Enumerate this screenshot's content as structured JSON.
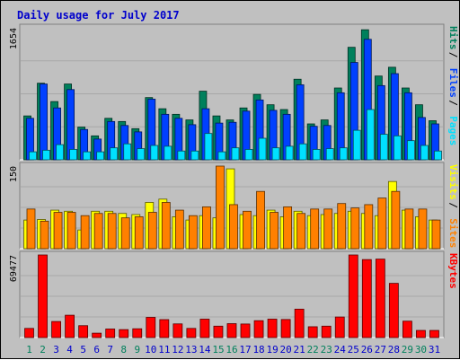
{
  "colors": {
    "background": "#c0c0c0",
    "panel_bg": "#c0c0c0",
    "grid": "#a8a8a8",
    "title": "#0000cc",
    "hits": "#00805c",
    "files": "#0040ff",
    "pages": "#00e0ff",
    "visits": "#ffff00",
    "sites": "#ff8000",
    "kbytes": "#ff0000",
    "weekend_label": "#00805c",
    "weekday_label": "#0000cc",
    "legend_slash": "#000000"
  },
  "chart_data": {
    "type": "bar",
    "title": "Daily usage for July 2017",
    "categories": [
      "1",
      "2",
      "3",
      "4",
      "5",
      "6",
      "7",
      "8",
      "9",
      "10",
      "11",
      "12",
      "13",
      "14",
      "15",
      "16",
      "17",
      "18",
      "19",
      "20",
      "21",
      "22",
      "23",
      "24",
      "25",
      "26",
      "27",
      "28",
      "29",
      "30",
      "31"
    ],
    "weekend_days": [
      "1",
      "2",
      "8",
      "9",
      "15",
      "16",
      "22",
      "23",
      "29",
      "30"
    ],
    "panels": [
      {
        "name": "hits-files-pages",
        "ymax_label": "1654",
        "ylim": [
          0,
          1654
        ],
        "legend": [
          "Pages",
          "Files",
          "Hits"
        ],
        "series": [
          {
            "name": "Hits",
            "color_key": "hits",
            "values": [
              550,
              960,
              730,
              950,
              410,
              300,
              520,
              480,
              390,
              780,
              640,
              570,
              500,
              860,
              550,
              500,
              650,
              820,
              690,
              630,
              1010,
              450,
              500,
              900,
              1410,
              1630,
              1050,
              1160,
              900,
              690,
              490
            ]
          },
          {
            "name": "Files",
            "color_key": "files",
            "values": [
              520,
              950,
              650,
              880,
              380,
              260,
              480,
              430,
              350,
              760,
              570,
              520,
              440,
              640,
              460,
              470,
              610,
              750,
              620,
              570,
              940,
              420,
              430,
              840,
              1220,
              1510,
              930,
              1080,
              840,
              530,
              450
            ]
          },
          {
            "name": "Pages",
            "color_key": "pages",
            "values": [
              100,
              120,
              190,
              130,
              100,
              100,
              150,
              200,
              140,
              180,
              170,
              110,
              110,
              330,
              100,
              150,
              130,
              270,
              150,
              170,
              200,
              130,
              140,
              150,
              370,
              630,
              320,
              300,
              240,
              180,
              110
            ]
          }
        ]
      },
      {
        "name": "visits-sites",
        "ymax_label": "150",
        "ylim": [
          0,
          150
        ],
        "legend": [
          "Sites",
          "Visits"
        ],
        "series": [
          {
            "name": "Visits",
            "color_key": "visits",
            "values": [
              52,
              53,
              70,
              68,
              34,
              68,
              68,
              64,
              62,
              84,
              90,
              58,
              52,
              60,
              56,
              145,
              62,
              60,
              70,
              58,
              68,
              60,
              62,
              64,
              68,
              64,
              60,
              122,
              70,
              58,
              52
            ]
          },
          {
            "name": "Sites",
            "color_key": "sites",
            "values": [
              72,
              50,
              66,
              66,
              60,
              64,
              64,
              56,
              58,
              66,
              84,
              70,
              60,
              76,
              150,
              80,
              68,
              104,
              66,
              76,
              64,
              72,
              72,
              82,
              74,
              80,
              92,
              104,
              72,
              72,
              52
            ]
          }
        ]
      },
      {
        "name": "kbytes",
        "ymax_label": "69477",
        "ylim": [
          0,
          69477
        ],
        "legend": [
          "KBytes"
        ],
        "series": [
          {
            "name": "KBytes",
            "color_key": "kbytes",
            "values": [
              7700,
              69477,
              13500,
              18800,
              10000,
              3700,
              7200,
              6700,
              7400,
              17000,
              15100,
              11500,
              7700,
              15500,
              9600,
              11700,
              11400,
              14200,
              15500,
              15200,
              23900,
              9100,
              9600,
              17300,
              69477,
              65600,
              66000,
              45600,
              13800,
              6000,
              6000
            ]
          }
        ]
      }
    ]
  }
}
